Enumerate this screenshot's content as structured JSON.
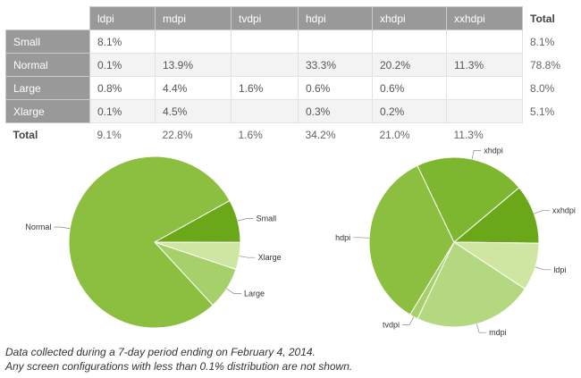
{
  "table": {
    "columns": [
      "ldpi",
      "mdpi",
      "tvdpi",
      "hdpi",
      "xhdpi",
      "xxhdpi"
    ],
    "total_label": "Total",
    "rows": [
      {
        "label": "Small",
        "cells": [
          "8.1%",
          "",
          "",
          "",
          "",
          ""
        ],
        "total": "8.1%"
      },
      {
        "label": "Normal",
        "cells": [
          "0.1%",
          "13.9%",
          "",
          "33.3%",
          "20.2%",
          "11.3%"
        ],
        "total": "78.8%"
      },
      {
        "label": "Large",
        "cells": [
          "0.8%",
          "4.4%",
          "1.6%",
          "0.6%",
          "0.6%",
          ""
        ],
        "total": "8.0%"
      },
      {
        "label": "Xlarge",
        "cells": [
          "0.1%",
          "4.5%",
          "",
          "0.3%",
          "0.2%",
          ""
        ],
        "total": "5.1%"
      }
    ],
    "footer": {
      "label": "Total",
      "cells": [
        "9.1%",
        "22.8%",
        "1.6%",
        "34.2%",
        "21.0%",
        "11.3%"
      ]
    }
  },
  "chart_data": [
    {
      "type": "pie",
      "title": "",
      "categories": [
        "Small",
        "Xlarge",
        "Large",
        "Normal"
      ],
      "values": [
        8.1,
        5.1,
        8.0,
        78.8
      ],
      "colors": [
        "#6aa81a",
        "#cfe6a3",
        "#a6d06a",
        "#8cbf3f"
      ]
    },
    {
      "type": "pie",
      "title": "",
      "categories": [
        "xxhdpi",
        "ldpi",
        "mdpi",
        "tvdpi",
        "hdpi",
        "xhdpi"
      ],
      "values": [
        11.3,
        9.1,
        22.8,
        1.6,
        34.2,
        21.0
      ],
      "colors": [
        "#6aa81a",
        "#cfe6a3",
        "#b3d880",
        "#a6d06a",
        "#8cbf3f",
        "#7db72f"
      ]
    }
  ],
  "notes": [
    "Data collected during a 7-day period ending on February 4, 2014.",
    "Any screen configurations with less than 0.1% distribution are not shown."
  ]
}
